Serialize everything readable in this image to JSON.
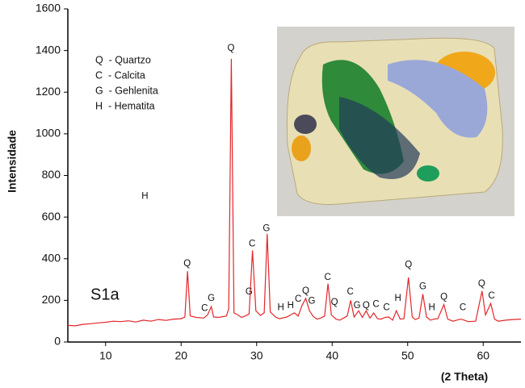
{
  "chart_data": {
    "type": "line",
    "ylabel": "Intensidade",
    "xlabel": "(2 Theta)",
    "sample_label": "S1a",
    "xlim": [
      5,
      65
    ],
    "xticks": [
      10,
      20,
      30,
      40,
      50,
      60
    ],
    "ylim": [
      0,
      1600
    ],
    "yticks": [
      0,
      200,
      400,
      600,
      800,
      1000,
      1200,
      1400,
      1600
    ],
    "x": [
      5,
      6,
      7,
      8,
      9,
      10,
      11,
      12,
      13,
      14,
      15,
      16,
      17,
      18,
      19,
      20,
      20.5,
      20.85,
      21.2,
      22,
      23,
      23.5,
      24,
      24.3,
      25,
      26,
      26.3,
      26.65,
      27,
      27.5,
      28,
      28.5,
      29,
      29.45,
      29.9,
      30.5,
      31,
      31.4,
      31.8,
      32.5,
      33,
      34,
      34.5,
      35,
      35.5,
      36,
      36.5,
      37,
      37.5,
      38,
      38.5,
      39,
      39.45,
      39.9,
      40.5,
      41,
      41.5,
      42,
      42.45,
      42.9,
      43.5,
      44,
      44.5,
      45,
      45.5,
      46,
      46.5,
      47,
      47.5,
      48,
      48.5,
      49,
      49.5,
      50.1,
      50.6,
      51,
      51.5,
      52,
      52.5,
      53,
      53.5,
      54,
      54.8,
      55.3,
      56,
      57,
      57.5,
      58,
      59,
      59.85,
      60.3,
      61,
      61.5,
      62,
      63,
      64,
      65
    ],
    "series": [
      {
        "color": "#e3262a",
        "values": [
          80,
          78,
          85,
          88,
          92,
          95,
          100,
          98,
          102,
          96,
          105,
          100,
          108,
          104,
          110,
          112,
          120,
          340,
          125,
          118,
          115,
          130,
          170,
          120,
          118,
          125,
          160,
          1360,
          140,
          130,
          118,
          125,
          135,
          440,
          150,
          128,
          140,
          520,
          145,
          120,
          112,
          120,
          130,
          140,
          125,
          175,
          210,
          150,
          122,
          110,
          115,
          125,
          280,
          130,
          110,
          105,
          115,
          125,
          200,
          120,
          150,
          118,
          150,
          115,
          140,
          112,
          110,
          118,
          120,
          105,
          150,
          110,
          112,
          310,
          120,
          108,
          115,
          230,
          120,
          105,
          110,
          112,
          180,
          110,
          100,
          110,
          105,
          98,
          100,
          245,
          130,
          185,
          110,
          100,
          105,
          108,
          110
        ]
      }
    ],
    "legend_entries": [
      "Q  - Quartzo",
      "C  - Calcita",
      "G  - Gehlenita",
      "H  - Hematita"
    ],
    "annotations": [
      {
        "text": "H",
        "x": 15.2,
        "y": 700
      },
      {
        "text": "Q",
        "x": 20.8,
        "y": 375
      },
      {
        "text": "C",
        "x": 23.1,
        "y": 160
      },
      {
        "text": "G",
        "x": 24.0,
        "y": 210
      },
      {
        "text": "Q",
        "x": 26.6,
        "y": 1410
      },
      {
        "text": "G",
        "x": 29.0,
        "y": 240
      },
      {
        "text": "C",
        "x": 29.4,
        "y": 470
      },
      {
        "text": "G",
        "x": 31.3,
        "y": 545
      },
      {
        "text": "H",
        "x": 33.2,
        "y": 165
      },
      {
        "text": "H",
        "x": 34.5,
        "y": 175
      },
      {
        "text": "C",
        "x": 35.5,
        "y": 205
      },
      {
        "text": "Q",
        "x": 36.5,
        "y": 245
      },
      {
        "text": "G",
        "x": 37.3,
        "y": 195
      },
      {
        "text": "C",
        "x": 39.4,
        "y": 310
      },
      {
        "text": "Q",
        "x": 40.3,
        "y": 190
      },
      {
        "text": "C",
        "x": 42.4,
        "y": 240
      },
      {
        "text": "G",
        "x": 43.3,
        "y": 175
      },
      {
        "text": "Q",
        "x": 44.5,
        "y": 175
      },
      {
        "text": "C",
        "x": 45.8,
        "y": 180
      },
      {
        "text": "C",
        "x": 47.2,
        "y": 165
      },
      {
        "text": "H",
        "x": 48.7,
        "y": 210
      },
      {
        "text": "Q",
        "x": 50.1,
        "y": 370
      },
      {
        "text": "G",
        "x": 52.0,
        "y": 265
      },
      {
        "text": "H",
        "x": 53.2,
        "y": 165
      },
      {
        "text": "Q",
        "x": 54.8,
        "y": 215
      },
      {
        "text": "C",
        "x": 57.3,
        "y": 165
      },
      {
        "text": "Q",
        "x": 59.8,
        "y": 280
      },
      {
        "text": "C",
        "x": 61.1,
        "y": 220
      }
    ]
  }
}
